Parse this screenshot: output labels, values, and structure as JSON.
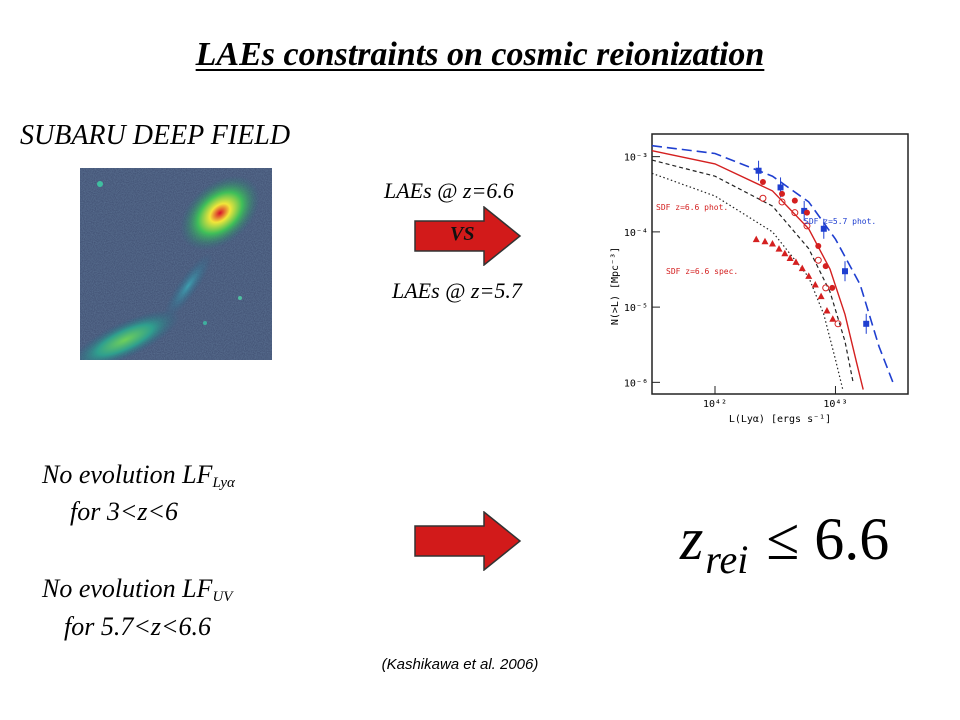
{
  "title": "LAEs constraints on cosmic reionization",
  "subtitle": "SUBARU DEEP FIELD",
  "labels": {
    "z66": "LAEs @ z=6.6",
    "z57": "LAEs @ z=5.7",
    "vs": "VS"
  },
  "text": {
    "line1_main": "No evolution LF",
    "line1_sub": "Lyα",
    "line1_range": "for 3<z<6",
    "line2_main": "No evolution LF",
    "line2_sub": "UV",
    "line2_range": "for 5.7<z<6.6"
  },
  "formula": {
    "variable": "z",
    "subscript": "rei",
    "relation": "≤ 6.6"
  },
  "citation": "(Kashikawa et al. 2006)",
  "colors": {
    "arrow": "#d21a1a",
    "phot57": "#1f3fd0",
    "phot66": "#d42020",
    "spec66": "#d42020"
  },
  "chart_data": {
    "type": "line",
    "xlabel": "L(Lyα) [ergs s⁻¹]",
    "ylabel": "N(>L) [Mpc⁻³]",
    "x_scale": "log",
    "y_scale": "log",
    "xlim": [
      3e+41,
      4e+43
    ],
    "ylim": [
      7e-07,
      0.002
    ],
    "x_ticks": [
      {
        "v": 1e+42,
        "label": "10⁴²"
      },
      {
        "v": 1e+43,
        "label": "10⁴³"
      }
    ],
    "y_ticks": [
      {
        "v": 0.001,
        "label": "10⁻³"
      },
      {
        "v": 0.0001,
        "label": "10⁻⁴"
      },
      {
        "v": 1e-05,
        "label": "10⁻⁵"
      },
      {
        "v": 1e-06,
        "label": "10⁻⁶"
      }
    ],
    "annotations": [
      "SDF z=6.6 phot.",
      "SDF z=5.7 phot.",
      "SDF z=6.6 spec."
    ],
    "series": [
      {
        "name": "SDF z=5.7 phot.",
        "style": "blue-square",
        "points": [
          [
            2.3e+42,
            0.00065
          ],
          [
            3.5e+42,
            0.00039
          ],
          [
            5.5e+42,
            0.00019
          ],
          [
            8e+42,
            0.00011
          ],
          [
            1.2e+43,
            3e-05
          ],
          [
            1.8e+43,
            6e-06
          ]
        ]
      },
      {
        "name": "SDF z=6.6 phot.",
        "style": "red-filled-circle",
        "points": [
          [
            2.5e+42,
            0.00046
          ],
          [
            3.6e+42,
            0.00032
          ],
          [
            4.6e+42,
            0.00026
          ],
          [
            5.8e+42,
            0.00018
          ],
          [
            7.2e+42,
            6.5e-05
          ],
          [
            8.3e+42,
            3.5e-05
          ],
          [
            9.4e+42,
            1.8e-05
          ]
        ]
      },
      {
        "name": "SDF z=6.6 phot. (open)",
        "style": "red-open-circle",
        "points": [
          [
            2.5e+42,
            0.00028
          ],
          [
            3.6e+42,
            0.00025
          ],
          [
            4.6e+42,
            0.00018
          ],
          [
            5.8e+42,
            0.00012
          ],
          [
            7.2e+42,
            4.2e-05
          ],
          [
            8.3e+42,
            1.8e-05
          ],
          [
            1.05e+43,
            6e-06
          ]
        ]
      },
      {
        "name": "SDF z=6.6 spec.",
        "style": "red-triangle",
        "points": [
          [
            2.2e+42,
            8e-05
          ],
          [
            2.6e+42,
            7.5e-05
          ],
          [
            3e+42,
            7e-05
          ],
          [
            3.4e+42,
            6e-05
          ],
          [
            3.8e+42,
            5.2e-05
          ],
          [
            4.2e+42,
            4.5e-05
          ],
          [
            4.7e+42,
            4e-05
          ],
          [
            5.3e+42,
            3.3e-05
          ],
          [
            6e+42,
            2.6e-05
          ],
          [
            6.8e+42,
            2e-05
          ],
          [
            7.6e+42,
            1.4e-05
          ],
          [
            8.5e+42,
            9e-06
          ],
          [
            9.5e+42,
            7e-06
          ]
        ]
      }
    ],
    "curves": [
      {
        "style": "blue-long-dash",
        "points": [
          [
            3e+41,
            0.0014
          ],
          [
            1e+42,
            0.0011
          ],
          [
            3e+42,
            0.00055
          ],
          [
            6e+42,
            0.00025
          ],
          [
            1e+43,
            8e-05
          ],
          [
            1.6e+43,
            2e-05
          ],
          [
            2.3e+43,
            3e-06
          ],
          [
            3e+43,
            1e-06
          ]
        ]
      },
      {
        "style": "red-solid",
        "points": [
          [
            3e+41,
            0.0012
          ],
          [
            1e+42,
            0.0008
          ],
          [
            3e+42,
            0.00035
          ],
          [
            6e+42,
            0.00011
          ],
          [
            9e+42,
            3.2e-05
          ],
          [
            1.2e+43,
            8e-06
          ],
          [
            1.5e+43,
            1.8e-06
          ],
          [
            1.7e+43,
            8e-07
          ]
        ]
      },
      {
        "style": "black-short-dash",
        "points": [
          [
            3e+41,
            0.0009
          ],
          [
            1e+42,
            0.00055
          ],
          [
            3e+42,
            0.00022
          ],
          [
            6e+42,
            6e-05
          ],
          [
            9e+42,
            1.6e-05
          ],
          [
            1.2e+43,
            3.5e-06
          ],
          [
            1.4e+43,
            1e-06
          ]
        ]
      },
      {
        "style": "black-dotted",
        "points": [
          [
            3e+41,
            0.0006
          ],
          [
            1e+42,
            0.0003
          ],
          [
            3e+42,
            0.0001
          ],
          [
            6e+42,
            2.5e-05
          ],
          [
            8e+42,
            8e-06
          ],
          [
            1e+43,
            2e-06
          ],
          [
            1.15e+43,
            8e-07
          ]
        ]
      }
    ]
  }
}
